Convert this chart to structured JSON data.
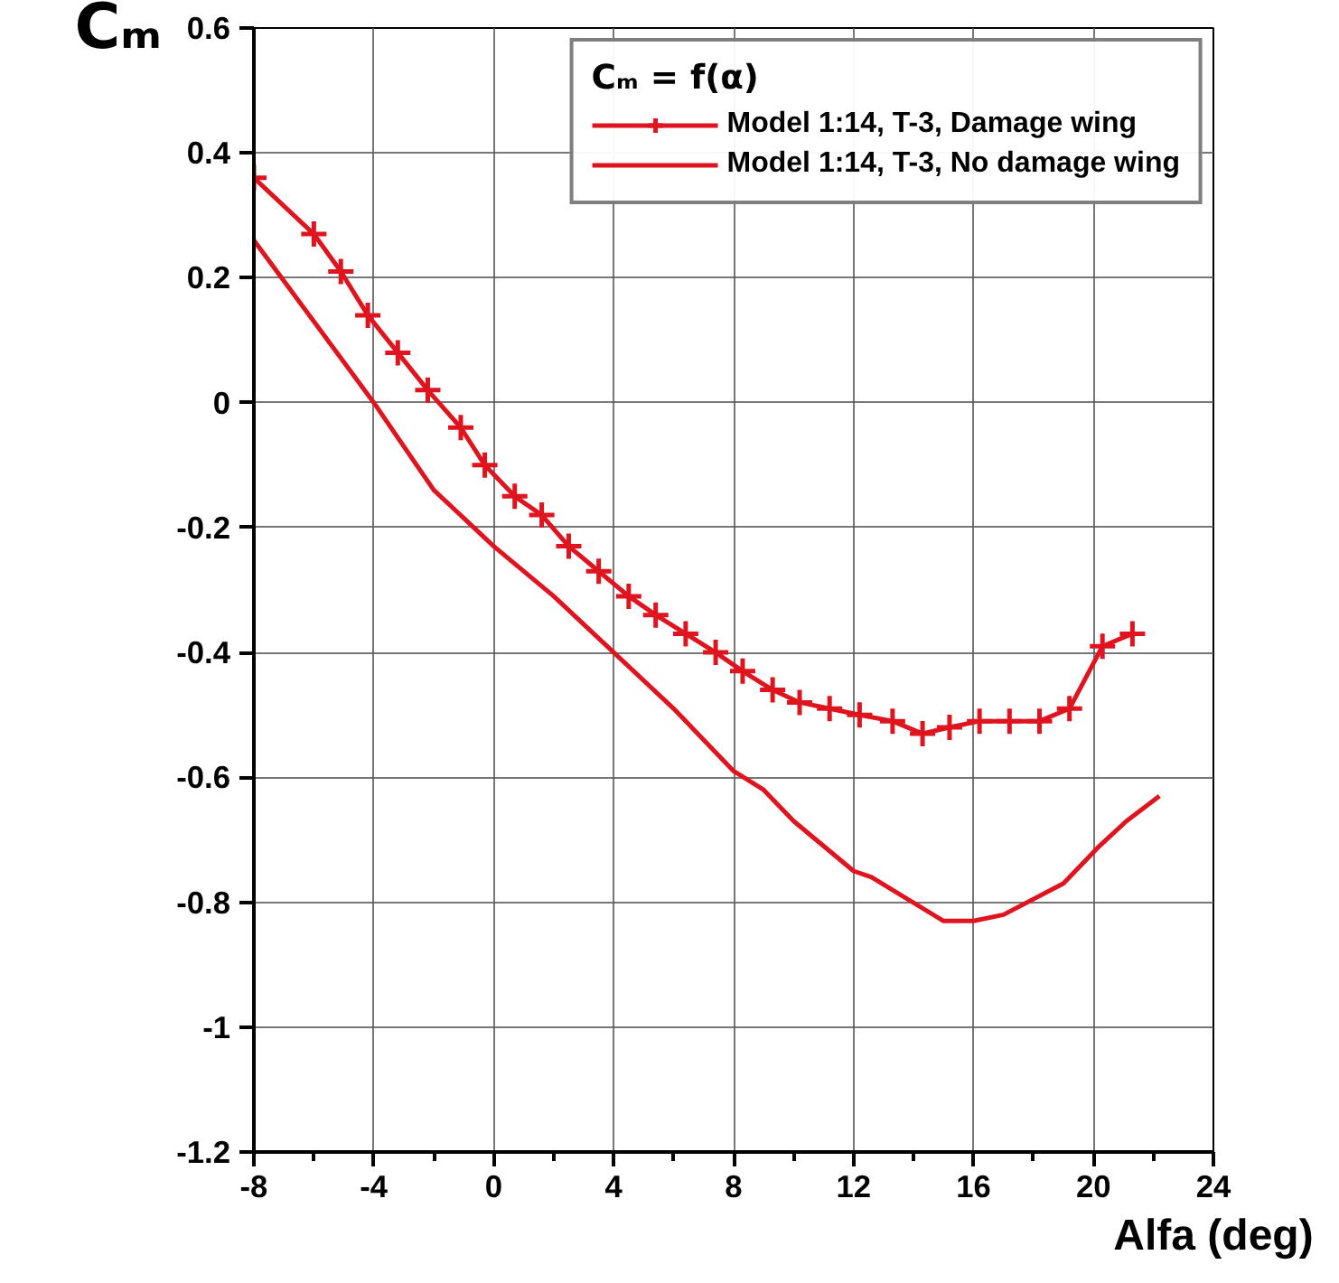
{
  "chart_data": {
    "type": "line",
    "ylabel": "Cₘ",
    "xlabel": "Alfa (deg)",
    "legend_title": "Cₘ = f(α)",
    "legend": "top right",
    "grid": true,
    "xlim": [
      -8,
      24
    ],
    "xticks": [
      -8,
      -4,
      0,
      4,
      8,
      12,
      16,
      20,
      24
    ],
    "ylim": [
      -1.2,
      0.6
    ],
    "yticks": [
      -1.2,
      -1,
      -0.8,
      -0.6,
      -0.4,
      -0.2,
      0,
      0.2,
      0.4,
      0.6
    ],
    "series": [
      {
        "name": "Model 1:14, T-3, Damage wing",
        "color": "#e0141e",
        "marker": "cross",
        "x": [
          -8,
          -6,
          -5.1,
          -4.2,
          -3.2,
          -2.2,
          -1.1,
          -0.3,
          0.7,
          1.6,
          2.5,
          3.5,
          4.5,
          5.4,
          6.4,
          7.4,
          8.3,
          9.3,
          10.2,
          11.2,
          12.2,
          13.3,
          14.3,
          15.2,
          16.2,
          17.2,
          18.2,
          19.2,
          20.3,
          21.3
        ],
        "values": [
          0.36,
          0.27,
          0.21,
          0.14,
          0.08,
          0.02,
          -0.04,
          -0.1,
          -0.15,
          -0.18,
          -0.23,
          -0.27,
          -0.31,
          -0.34,
          -0.37,
          -0.4,
          -0.43,
          -0.46,
          -0.48,
          -0.49,
          -0.5,
          -0.51,
          -0.53,
          -0.52,
          -0.51,
          -0.51,
          -0.51,
          -0.49,
          -0.39,
          -0.37
        ]
      },
      {
        "name": "Model 1:14, T-3, No damage wing",
        "color": "#e0141e",
        "marker": "none",
        "x": [
          -8,
          -6,
          -4,
          -2,
          0,
          2,
          4,
          6,
          8,
          9,
          10,
          12,
          12.6,
          15,
          16,
          17,
          19,
          20.2,
          21.1,
          22.2
        ],
        "values": [
          0.26,
          0.13,
          0,
          -0.14,
          -0.23,
          -0.31,
          -0.4,
          -0.49,
          -0.59,
          -0.62,
          -0.67,
          -0.75,
          -0.76,
          -0.83,
          -0.83,
          -0.82,
          -0.77,
          -0.71,
          -0.67,
          -0.63
        ]
      }
    ]
  }
}
